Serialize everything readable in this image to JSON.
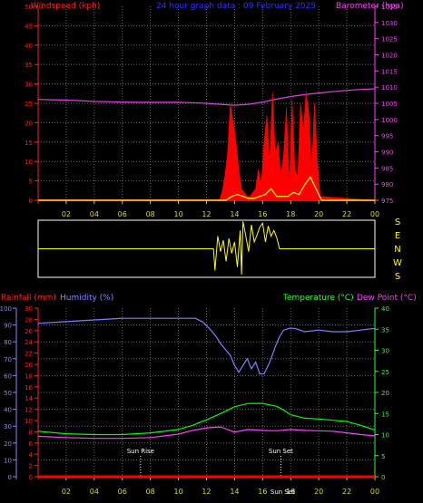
{
  "chart_data": [
    {
      "type": "line",
      "id": "wind_baro",
      "title": "24 hour graph data : 09 February 2025",
      "left_axis": {
        "label": "Windspeed (kph)",
        "min": 0,
        "max": 50,
        "ticks": [
          0,
          5,
          10,
          15,
          20,
          25,
          30,
          35,
          40,
          45,
          50
        ],
        "color": "#ff2020"
      },
      "right_axis": {
        "label": "Barometer (hpa)",
        "min": 975,
        "max": 1035,
        "ticks": [
          975,
          980,
          985,
          990,
          995,
          1000,
          1005,
          1010,
          1015,
          1020,
          1025,
          1030,
          1035
        ],
        "color": "#ff40ff"
      },
      "x_ticks": [
        "02",
        "04",
        "06",
        "08",
        "10",
        "12",
        "14",
        "16",
        "18",
        "20",
        "22",
        "00"
      ],
      "grid": true,
      "series": [
        {
          "key": "barometer",
          "axis": "right",
          "color": "#e040e0",
          "x": [
            0,
            1,
            2,
            3,
            4,
            5,
            6,
            7,
            8,
            9,
            10,
            11,
            12,
            13,
            14,
            15,
            16,
            17,
            18,
            19,
            20,
            21,
            22,
            23,
            24
          ],
          "y": [
            1006.2,
            1006.1,
            1006.0,
            1005.8,
            1005.6,
            1005.5,
            1005.4,
            1005.3,
            1005.3,
            1005.3,
            1005.3,
            1005.2,
            1005.0,
            1004.7,
            1004.4,
            1004.7,
            1005.4,
            1006.3,
            1007.1,
            1007.7,
            1008.2,
            1008.6,
            1009.0,
            1009.3,
            1009.5
          ]
        },
        {
          "key": "wind_gust",
          "axis": "left",
          "color": "#ff0000",
          "fill": true,
          "x": [
            0,
            12.9,
            13.1,
            13.3,
            13.5,
            13.7,
            13.9,
            14.1,
            14.3,
            14.5,
            14.7,
            14.9,
            15.1,
            15.3,
            15.5,
            15.7,
            15.9,
            16.1,
            16.3,
            16.5,
            16.7,
            16.9,
            17.1,
            17.3,
            17.5,
            17.7,
            17.9,
            18.1,
            18.3,
            18.5,
            18.7,
            18.9,
            19.1,
            19.3,
            19.5,
            19.7,
            19.9,
            20.1,
            24
          ],
          "y": [
            0,
            0,
            2,
            6,
            12,
            25,
            20,
            15,
            8,
            3,
            2,
            1,
            1,
            2,
            3,
            8,
            4,
            15,
            22,
            10,
            28,
            12,
            15,
            6,
            12,
            24,
            4,
            26,
            8,
            6,
            25,
            18,
            28,
            22,
            8,
            25,
            10,
            1,
            0
          ]
        },
        {
          "key": "wind_avg",
          "axis": "left",
          "color": "#ffff00",
          "x": [
            0,
            13.4,
            13.8,
            14.2,
            14.6,
            15.0,
            15.4,
            15.8,
            16.2,
            16.6,
            17.0,
            17.4,
            17.8,
            18.2,
            18.6,
            19.0,
            19.4,
            19.8,
            20.2,
            24
          ],
          "y": [
            0,
            0,
            1,
            1.5,
            1,
            0.5,
            0.5,
            1,
            1.5,
            3,
            1,
            1,
            1,
            2,
            1.5,
            4,
            6,
            3,
            0,
            0
          ]
        }
      ]
    },
    {
      "type": "line",
      "id": "direction",
      "right_labels": [
        "S",
        "E",
        "N",
        "W",
        "S"
      ],
      "x": [
        0,
        12.5,
        12.6,
        12.8,
        13.0,
        13.2,
        13.4,
        13.6,
        13.8,
        14.0,
        14.2,
        14.4,
        14.5,
        14.6,
        14.8,
        15.0,
        15.2,
        15.4,
        15.6,
        15.8,
        16.0,
        16.2,
        16.4,
        16.6,
        16.8,
        17.0,
        17.2,
        24
      ],
      "y": [
        0.5,
        0.5,
        0.12,
        0.72,
        0.45,
        0.65,
        0.28,
        0.68,
        0.42,
        0.62,
        0.18,
        0.82,
        0.05,
        0.98,
        0.72,
        0.45,
        0.92,
        0.62,
        0.74,
        0.88,
        0.95,
        0.62,
        0.9,
        0.72,
        0.82,
        0.7,
        0.5,
        0.5
      ],
      "color": "#ffff00"
    },
    {
      "type": "line",
      "id": "temp_hum_rain",
      "axes": [
        {
          "label": "Rainfall (mm)",
          "min": 0,
          "max": 100,
          "ticks": [
            0,
            10,
            20,
            30,
            40,
            50,
            60,
            70,
            80,
            90,
            100
          ],
          "color": "#ff2020"
        },
        {
          "label": "Humidity (%)",
          "min": 0,
          "max": 30,
          "ticks": [
            0,
            2,
            4,
            6,
            8,
            10,
            12,
            14,
            16,
            18,
            20,
            22,
            24,
            26,
            28,
            30
          ],
          "color": "#8888ff"
        },
        {
          "label": "Temperature (°C)",
          "min": 0,
          "max": 40,
          "ticks": [
            0,
            5,
            10,
            15,
            20,
            25,
            30,
            35,
            40
          ],
          "color": "#30ff30"
        },
        {
          "label": "Dew Point (°C)",
          "color": "#ff40ff"
        }
      ],
      "x_ticks": [
        "02",
        "04",
        "06",
        "08",
        "10",
        "12",
        "14",
        "16",
        "18",
        "20",
        "22",
        "00"
      ],
      "sunrise": {
        "label": "Sun Rise",
        "x": 7.3
      },
      "sunset": {
        "label": "Sun Set",
        "x": 17.3
      },
      "series": [
        {
          "key": "humidity",
          "color": "#8080ff",
          "x": [
            0,
            2,
            4,
            6,
            8,
            10,
            11.2,
            11.7,
            12.2,
            12.7,
            13.0,
            13.4,
            13.7,
            14.0,
            14.3,
            14.6,
            14.9,
            15.2,
            15.5,
            15.8,
            16.1,
            16.4,
            16.6,
            16.9,
            17.2,
            17.5,
            17.9,
            18.3,
            19,
            20,
            21,
            22,
            23,
            24
          ],
          "y": [
            91,
            92,
            93,
            94,
            94,
            94,
            94,
            92,
            88,
            83,
            79,
            75,
            72,
            66,
            62,
            66,
            70,
            64,
            68,
            61,
            61,
            66,
            70,
            77,
            83,
            87,
            88,
            88,
            86,
            87,
            86,
            86,
            87,
            88
          ]
        },
        {
          "key": "temperature",
          "color": "#00ff00",
          "x": [
            0,
            2,
            4,
            6,
            8,
            10,
            11,
            12,
            13,
            14,
            15,
            16,
            17,
            17.5,
            18,
            19,
            20,
            21,
            22,
            23,
            24
          ],
          "y": [
            10.8,
            10.2,
            10.0,
            10.0,
            10.4,
            11.2,
            12.2,
            13.5,
            15.0,
            16.6,
            17.4,
            17.4,
            16.7,
            15.8,
            14.7,
            13.9,
            13.7,
            13.4,
            13.1,
            12.2,
            11.1
          ]
        },
        {
          "key": "dew_point",
          "color": "#ff40ff",
          "x": [
            0,
            2,
            4,
            6,
            8,
            10,
            11,
            12,
            13,
            14,
            15,
            16,
            17,
            18,
            19,
            20,
            21,
            22,
            23,
            24
          ],
          "y": [
            9.6,
            9.3,
            9.1,
            9.1,
            9.3,
            10.1,
            11.0,
            11.6,
            11.8,
            10.6,
            11.2,
            11.0,
            10.9,
            11.2,
            11.0,
            10.9,
            10.8,
            10.4,
            10.0,
            9.7
          ]
        },
        {
          "key": "rainfall",
          "color": "#ff0000",
          "x": [
            0,
            24
          ],
          "y": [
            0,
            0
          ]
        }
      ]
    }
  ]
}
